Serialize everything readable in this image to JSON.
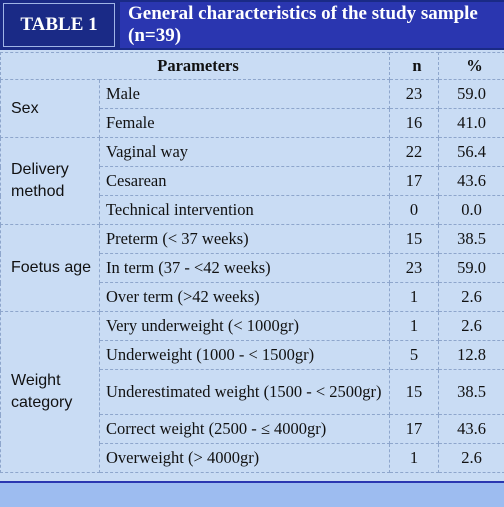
{
  "header": {
    "label": "TABLE 1",
    "title": "General characteristics of the study sample (n=39)"
  },
  "columns": {
    "parameters": "Parameters",
    "n": "n",
    "pct": "%"
  },
  "groups": [
    {
      "name": "Sex",
      "rows": [
        {
          "label": "Male",
          "n": "23",
          "pct": "59.0"
        },
        {
          "label": "Female",
          "n": "16",
          "pct": "41.0"
        }
      ]
    },
    {
      "name": "Delivery method",
      "rows": [
        {
          "label": "Vaginal way",
          "n": "22",
          "pct": "56.4"
        },
        {
          "label": "Cesarean",
          "n": "17",
          "pct": "43.6"
        },
        {
          "label": "Technical intervention",
          "n": "0",
          "pct": "0.0"
        }
      ]
    },
    {
      "name": "Foetus age",
      "rows": [
        {
          "label": "Preterm (< 37 weeks)",
          "n": "15",
          "pct": "38.5"
        },
        {
          "label": "In term (37 - <42 weeks)",
          "n": "23",
          "pct": "59.0"
        },
        {
          "label": "Over term (>42 weeks)",
          "n": "1",
          "pct": "2.6"
        }
      ]
    },
    {
      "name": "Weight category",
      "rows": [
        {
          "label": "Very underweight (< 1000gr)",
          "n": "1",
          "pct": "2.6"
        },
        {
          "label": "Underweight (1000 - < 1500gr)",
          "n": "5",
          "pct": "12.8"
        },
        {
          "label": "Underestimated weight (1500 - < 2500gr)",
          "n": "15",
          "pct": "38.5"
        },
        {
          "label": "Correct weight (2500 - ≤ 4000gr)",
          "n": "17",
          "pct": "43.6"
        },
        {
          "label": "Overweight (> 4000gr)",
          "n": "1",
          "pct": "2.6"
        }
      ]
    }
  ]
}
